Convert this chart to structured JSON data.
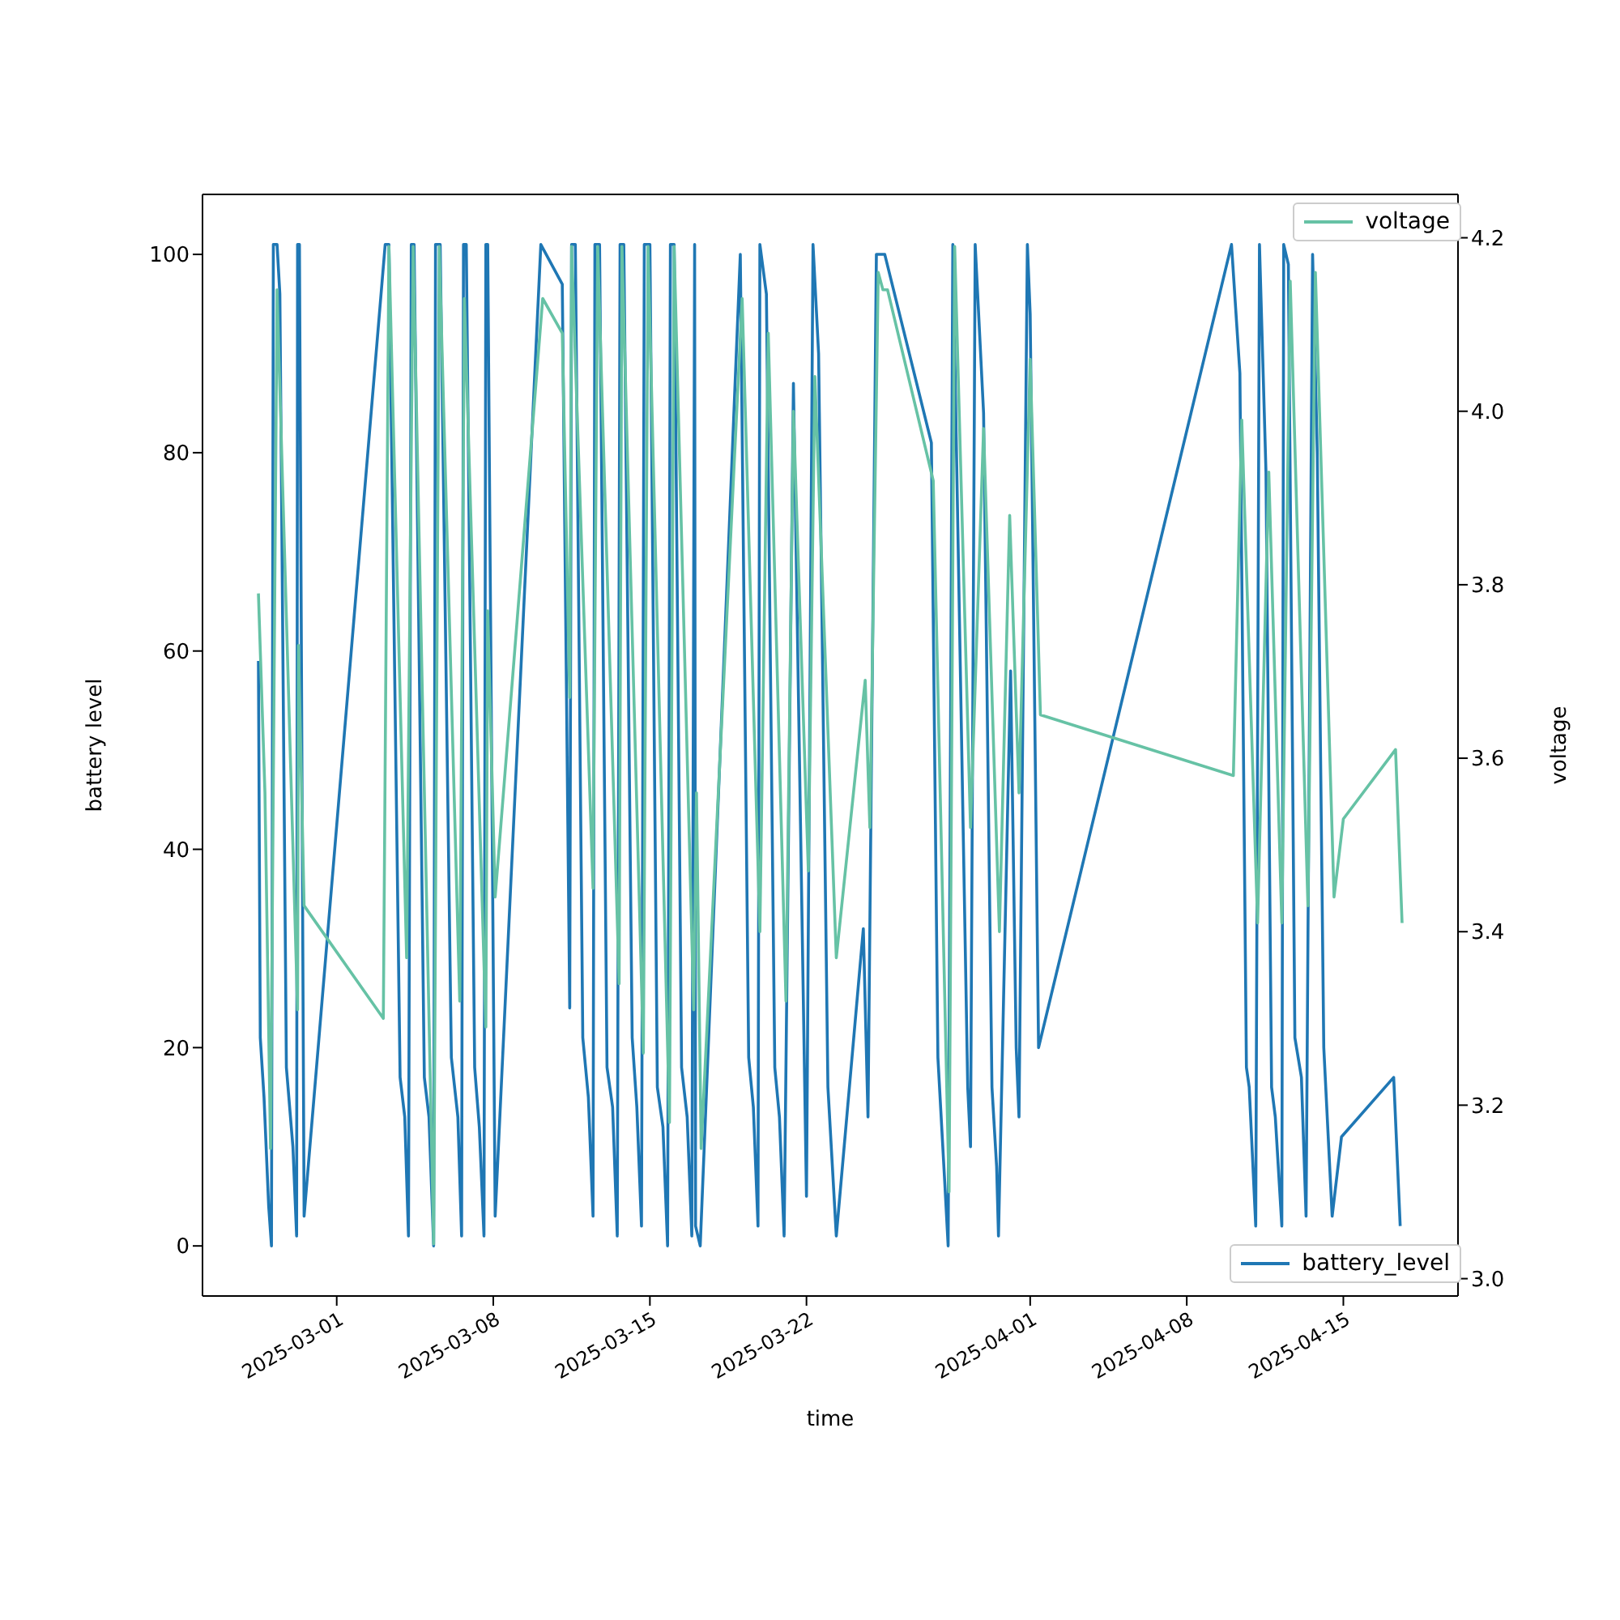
{
  "chart_data": {
    "type": "line",
    "xlabel": "time",
    "ylabel": "battery level",
    "y2label": "voltage",
    "xlim": [
      "2025-02-23",
      "2025-04-20T03:00"
    ],
    "xticks": [
      "2025-03-01",
      "2025-03-08",
      "2025-03-15",
      "2025-03-22",
      "2025-04-01",
      "2025-04-08",
      "2025-04-15"
    ],
    "ylim": [
      -5.05,
      106.05
    ],
    "yticks": [
      0,
      20,
      40,
      60,
      80,
      100
    ],
    "y2lim": [
      2.98,
      4.25
    ],
    "y2ticks": [
      {
        "value": 3,
        "label": "3.0"
      },
      {
        "value": 3.2,
        "label": "3.2"
      },
      {
        "value": 3.4,
        "label": "3.4"
      },
      {
        "value": 3.6,
        "label": "3.6"
      },
      {
        "value": 3.8,
        "label": "3.8"
      },
      {
        "value": 4,
        "label": "4.0"
      },
      {
        "value": 4.2,
        "label": "4.2"
      }
    ],
    "legend": "right",
    "grid": false,
    "marker": "none",
    "line_style": "solid",
    "series": [
      {
        "name": "battery_level",
        "color": "#1f77b4",
        "axis": "y",
        "x": [
          "2025-02-25T12:00",
          "2025-02-25T14:00",
          "2025-02-25T18:00",
          "2025-02-25T23:00",
          "2025-02-26T02:00",
          "2025-02-26T04:00",
          "2025-02-26T08:00",
          "2025-02-26T11:00",
          "2025-02-26T18:00",
          "2025-02-27T01:00",
          "2025-02-27T05:00",
          "2025-02-27T06:00",
          "2025-02-27T08:00",
          "2025-02-27T13:00",
          "2025-03-03T04:00",
          "2025-03-03T08:00",
          "2025-03-03T20:00",
          "2025-03-04T01:00",
          "2025-03-04T05:00",
          "2025-03-04T08:00",
          "2025-03-04T11:00",
          "2025-03-04T22:00",
          "2025-03-05T03:00",
          "2025-03-05T08:00",
          "2025-03-05T10:00",
          "2025-03-05T15:00",
          "2025-03-06T03:00",
          "2025-03-06T10:00",
          "2025-03-06T14:00",
          "2025-03-06T16:00",
          "2025-03-06T19:00",
          "2025-03-07T04:00",
          "2025-03-07T09:00",
          "2025-03-07T14:00",
          "2025-03-07T16:00",
          "2025-03-07T18:00",
          "2025-03-08T02:00",
          "2025-03-10T03:00",
          "2025-03-11T02:00",
          "2025-03-11T10:00",
          "2025-03-11T12:00",
          "2025-03-11T16:00",
          "2025-03-12T00:00",
          "2025-03-12T06:00",
          "2025-03-12T11:00",
          "2025-03-12T13:00",
          "2025-03-12T18:00",
          "2025-03-13T02:00",
          "2025-03-13T08:00",
          "2025-03-13T13:00",
          "2025-03-13T16:00",
          "2025-03-13T20:00",
          "2025-03-14T05:00",
          "2025-03-14T10:00",
          "2025-03-14T15:00",
          "2025-03-14T18:00",
          "2025-03-15T00:00",
          "2025-03-15T08:00",
          "2025-03-15T14:00",
          "2025-03-15T19:00",
          "2025-03-15T22:00",
          "2025-03-16T02:00",
          "2025-03-16T10:00",
          "2025-03-16T16:00",
          "2025-03-16T21:00",
          "2025-03-17T00:00",
          "2025-03-17T01:00",
          "2025-03-17T06:00",
          "2025-03-19T01:00",
          "2025-03-19T10:00",
          "2025-03-19T15:00",
          "2025-03-19T20:00",
          "2025-03-19T22:00",
          "2025-03-20T05:00",
          "2025-03-20T14:00",
          "2025-03-20T19:00",
          "2025-03-21T00:00",
          "2025-03-21T10:00",
          "2025-03-22T00:00",
          "2025-03-22T07:00",
          "2025-03-22T13:00",
          "2025-03-22T23:00",
          "2025-03-23T08:00",
          "2025-03-24T13:00",
          "2025-03-24T18:00",
          "2025-03-25T03:00",
          "2025-03-25T12:00",
          "2025-03-27T14:00",
          "2025-03-27T21:00",
          "2025-03-28T04:00",
          "2025-03-28T08:00",
          "2025-03-28T13:00",
          "2025-03-29T05:00",
          "2025-03-29T08:00",
          "2025-03-29T13:00",
          "2025-03-29T22:00",
          "2025-03-30T07:00",
          "2025-03-30T12:00",
          "2025-03-30T14:00",
          "2025-03-31T03:00",
          "2025-03-31T09:00",
          "2025-03-31T12:00",
          "2025-03-31T21:00",
          "2025-04-01T00:00",
          "2025-04-01T09:00",
          "2025-04-10T00:00",
          "2025-04-10T09:00",
          "2025-04-10T16:00",
          "2025-04-10T19:00",
          "2025-04-11T02:00",
          "2025-04-11T06:00",
          "2025-04-11T13:00",
          "2025-04-11T19:00",
          "2025-04-11T23:00",
          "2025-04-12T06:00",
          "2025-04-12T08:00",
          "2025-04-12T13:00",
          "2025-04-12T20:00",
          "2025-04-13T03:00",
          "2025-04-13T08:00",
          "2025-04-13T15:00",
          "2025-04-13T20:00",
          "2025-04-14T03:00",
          "2025-04-14T12:00",
          "2025-04-14T22:00",
          "2025-04-17T06:00",
          "2025-04-17T13:00"
        ],
        "values": [
          59,
          21,
          15,
          4,
          0,
          101,
          101,
          96,
          18,
          10,
          1,
          101,
          101,
          3,
          101,
          101,
          17,
          13,
          1,
          101,
          101,
          17,
          13,
          0,
          101,
          101,
          19,
          13,
          1,
          101,
          101,
          18,
          12,
          1,
          101,
          101,
          3,
          101,
          97,
          24,
          101,
          101,
          21,
          15,
          3,
          101,
          101,
          18,
          14,
          1,
          101,
          101,
          21,
          14,
          2,
          101,
          101,
          16,
          12,
          0,
          101,
          101,
          18,
          13,
          1,
          101,
          2,
          0,
          100,
          19,
          14,
          2,
          101,
          96,
          18,
          13,
          1,
          87,
          5,
          101,
          90,
          16,
          1,
          32,
          13,
          100,
          100,
          81,
          19,
          7,
          0,
          101,
          16,
          10,
          101,
          84,
          16,
          8,
          1,
          58,
          20,
          13,
          101,
          94,
          20,
          101,
          88,
          18,
          16,
          2,
          101,
          78,
          16,
          13,
          2,
          101,
          99,
          21,
          17,
          3,
          100,
          80,
          20,
          3,
          11,
          17,
          2
        ]
      },
      {
        "name": "voltage",
        "color": "#66c2a5",
        "axis": "y2",
        "x": [
          "2025-02-25T12:00",
          "2025-02-25T19:00",
          "2025-02-26T01:00",
          "2025-02-26T08:00",
          "2025-02-27T06:00",
          "2025-02-27T07:00",
          "2025-02-27T13:00",
          "2025-03-03T02:00",
          "2025-03-03T08:00",
          "2025-03-04T03:00",
          "2025-03-04T10:00",
          "2025-03-05T08:00",
          "2025-03-05T14:00",
          "2025-03-06T12:00",
          "2025-03-06T17:00",
          "2025-03-07T16:00",
          "2025-03-07T18:00",
          "2025-03-08T02:00",
          "2025-03-10T05:00",
          "2025-03-11T02:00",
          "2025-03-11T10:00",
          "2025-03-11T12:00",
          "2025-03-12T11:00",
          "2025-03-12T16:00",
          "2025-03-13T15:00",
          "2025-03-13T18:00",
          "2025-03-14T17:00",
          "2025-03-14T22:00",
          "2025-03-15T21:00",
          "2025-03-16T02:00",
          "2025-03-16T23:00",
          "2025-03-17T02:00",
          "2025-03-17T07:00",
          "2025-03-19T03:00",
          "2025-03-19T22:00",
          "2025-03-20T07:00",
          "2025-03-21T02:00",
          "2025-03-21T10:00",
          "2025-03-22T02:00",
          "2025-03-22T09:00",
          "2025-03-23T08:00",
          "2025-03-24T15:00",
          "2025-03-24T20:00",
          "2025-03-25T05:00",
          "2025-03-25T10:00",
          "2025-03-25T15:00",
          "2025-03-27T16:00",
          "2025-03-28T09:00",
          "2025-03-28T15:00",
          "2025-03-29T08:00",
          "2025-03-29T22:00",
          "2025-03-30T15:00",
          "2025-03-31T02:00",
          "2025-03-31T12:00",
          "2025-04-01T00:00",
          "2025-04-01T11:00",
          "2025-04-10T02:00",
          "2025-04-10T11:00",
          "2025-04-11T04:00",
          "2025-04-11T16:00",
          "2025-04-12T06:00",
          "2025-04-12T15:00",
          "2025-04-13T10:00",
          "2025-04-13T18:00",
          "2025-04-14T14:00",
          "2025-04-15T00:00",
          "2025-04-17T08:00",
          "2025-04-17T15:00"
        ],
        "values": [
          3.79,
          3.56,
          3.15,
          4.14,
          3.31,
          3.73,
          3.43,
          3.3,
          4.19,
          3.37,
          4.19,
          3.04,
          4.19,
          3.32,
          4.13,
          3.29,
          3.77,
          3.44,
          4.13,
          4.09,
          3.67,
          4.19,
          3.45,
          4.19,
          3.34,
          4.19,
          3.26,
          4.19,
          3.18,
          4.19,
          3.31,
          3.56,
          3.15,
          4.13,
          3.4,
          4.09,
          3.32,
          4,
          3.47,
          4.04,
          3.37,
          3.69,
          3.52,
          4.16,
          4.14,
          4.14,
          3.92,
          3.1,
          4.19,
          3.52,
          3.98,
          3.4,
          3.88,
          3.56,
          4.06,
          3.65,
          3.58,
          3.99,
          3.41,
          3.93,
          3.41,
          4.15,
          3.43,
          4.16,
          3.44,
          3.53,
          3.61,
          3.41
        ]
      }
    ]
  }
}
